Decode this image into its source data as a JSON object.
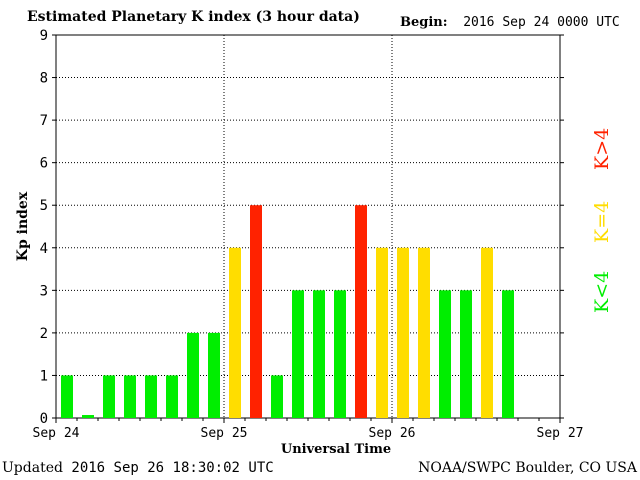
{
  "header": {
    "title": "Estimated Planetary K index (3 hour data)",
    "begin_label": "Begin:",
    "begin_value": "2016 Sep 24 0000 UTC"
  },
  "footer": {
    "updated_label": "Updated",
    "updated_value": "2016 Sep 26 18:30:02 UTC",
    "credit": "NOAA/SWPC Boulder, CO USA"
  },
  "legend": {
    "green_label": "K<4",
    "yellow_label": "K=4",
    "red_label": "K>4"
  },
  "colors": {
    "green": "#00ee00",
    "yellow": "#ffdd00",
    "red": "#ff2200",
    "grid": "#000000"
  },
  "chart_data": {
    "type": "bar",
    "xlabel": "Universal Time",
    "ylabel": "Kp index",
    "ylim": [
      0,
      9
    ],
    "yticks": [
      "0",
      "1",
      "2",
      "3",
      "4",
      "5",
      "6",
      "7",
      "8",
      "9"
    ],
    "xticks": [
      "Sep 24",
      "Sep 25",
      "Sep 26",
      "Sep 27"
    ],
    "grid": true,
    "values": [
      1,
      0.07,
      1,
      1,
      1,
      1,
      2,
      2,
      4,
      5,
      1,
      3,
      3,
      3,
      5,
      4,
      4,
      4,
      3,
      3,
      4,
      3
    ]
  }
}
